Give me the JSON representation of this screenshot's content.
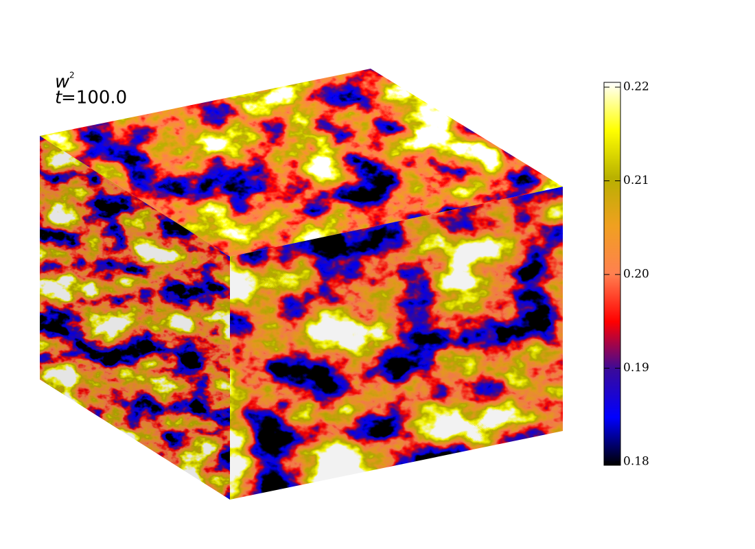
{
  "label": {
    "variable": "w",
    "exponent": "2",
    "time_symbol": "t",
    "time_text": "=100.0"
  },
  "colorbar": {
    "range": [
      0.18,
      0.22
    ],
    "ticks": [
      0.18,
      0.19,
      {
        "value": 0.2,
        "label": "0.20"
      },
      0.21,
      0.22
    ],
    "colormap": [
      "#000000",
      "#0000ff",
      "#3a0a9a",
      "#ff0000",
      "#ff8050",
      "#f0a020",
      "#b8b000",
      "#ffff00",
      "#ffffff"
    ]
  }
}
